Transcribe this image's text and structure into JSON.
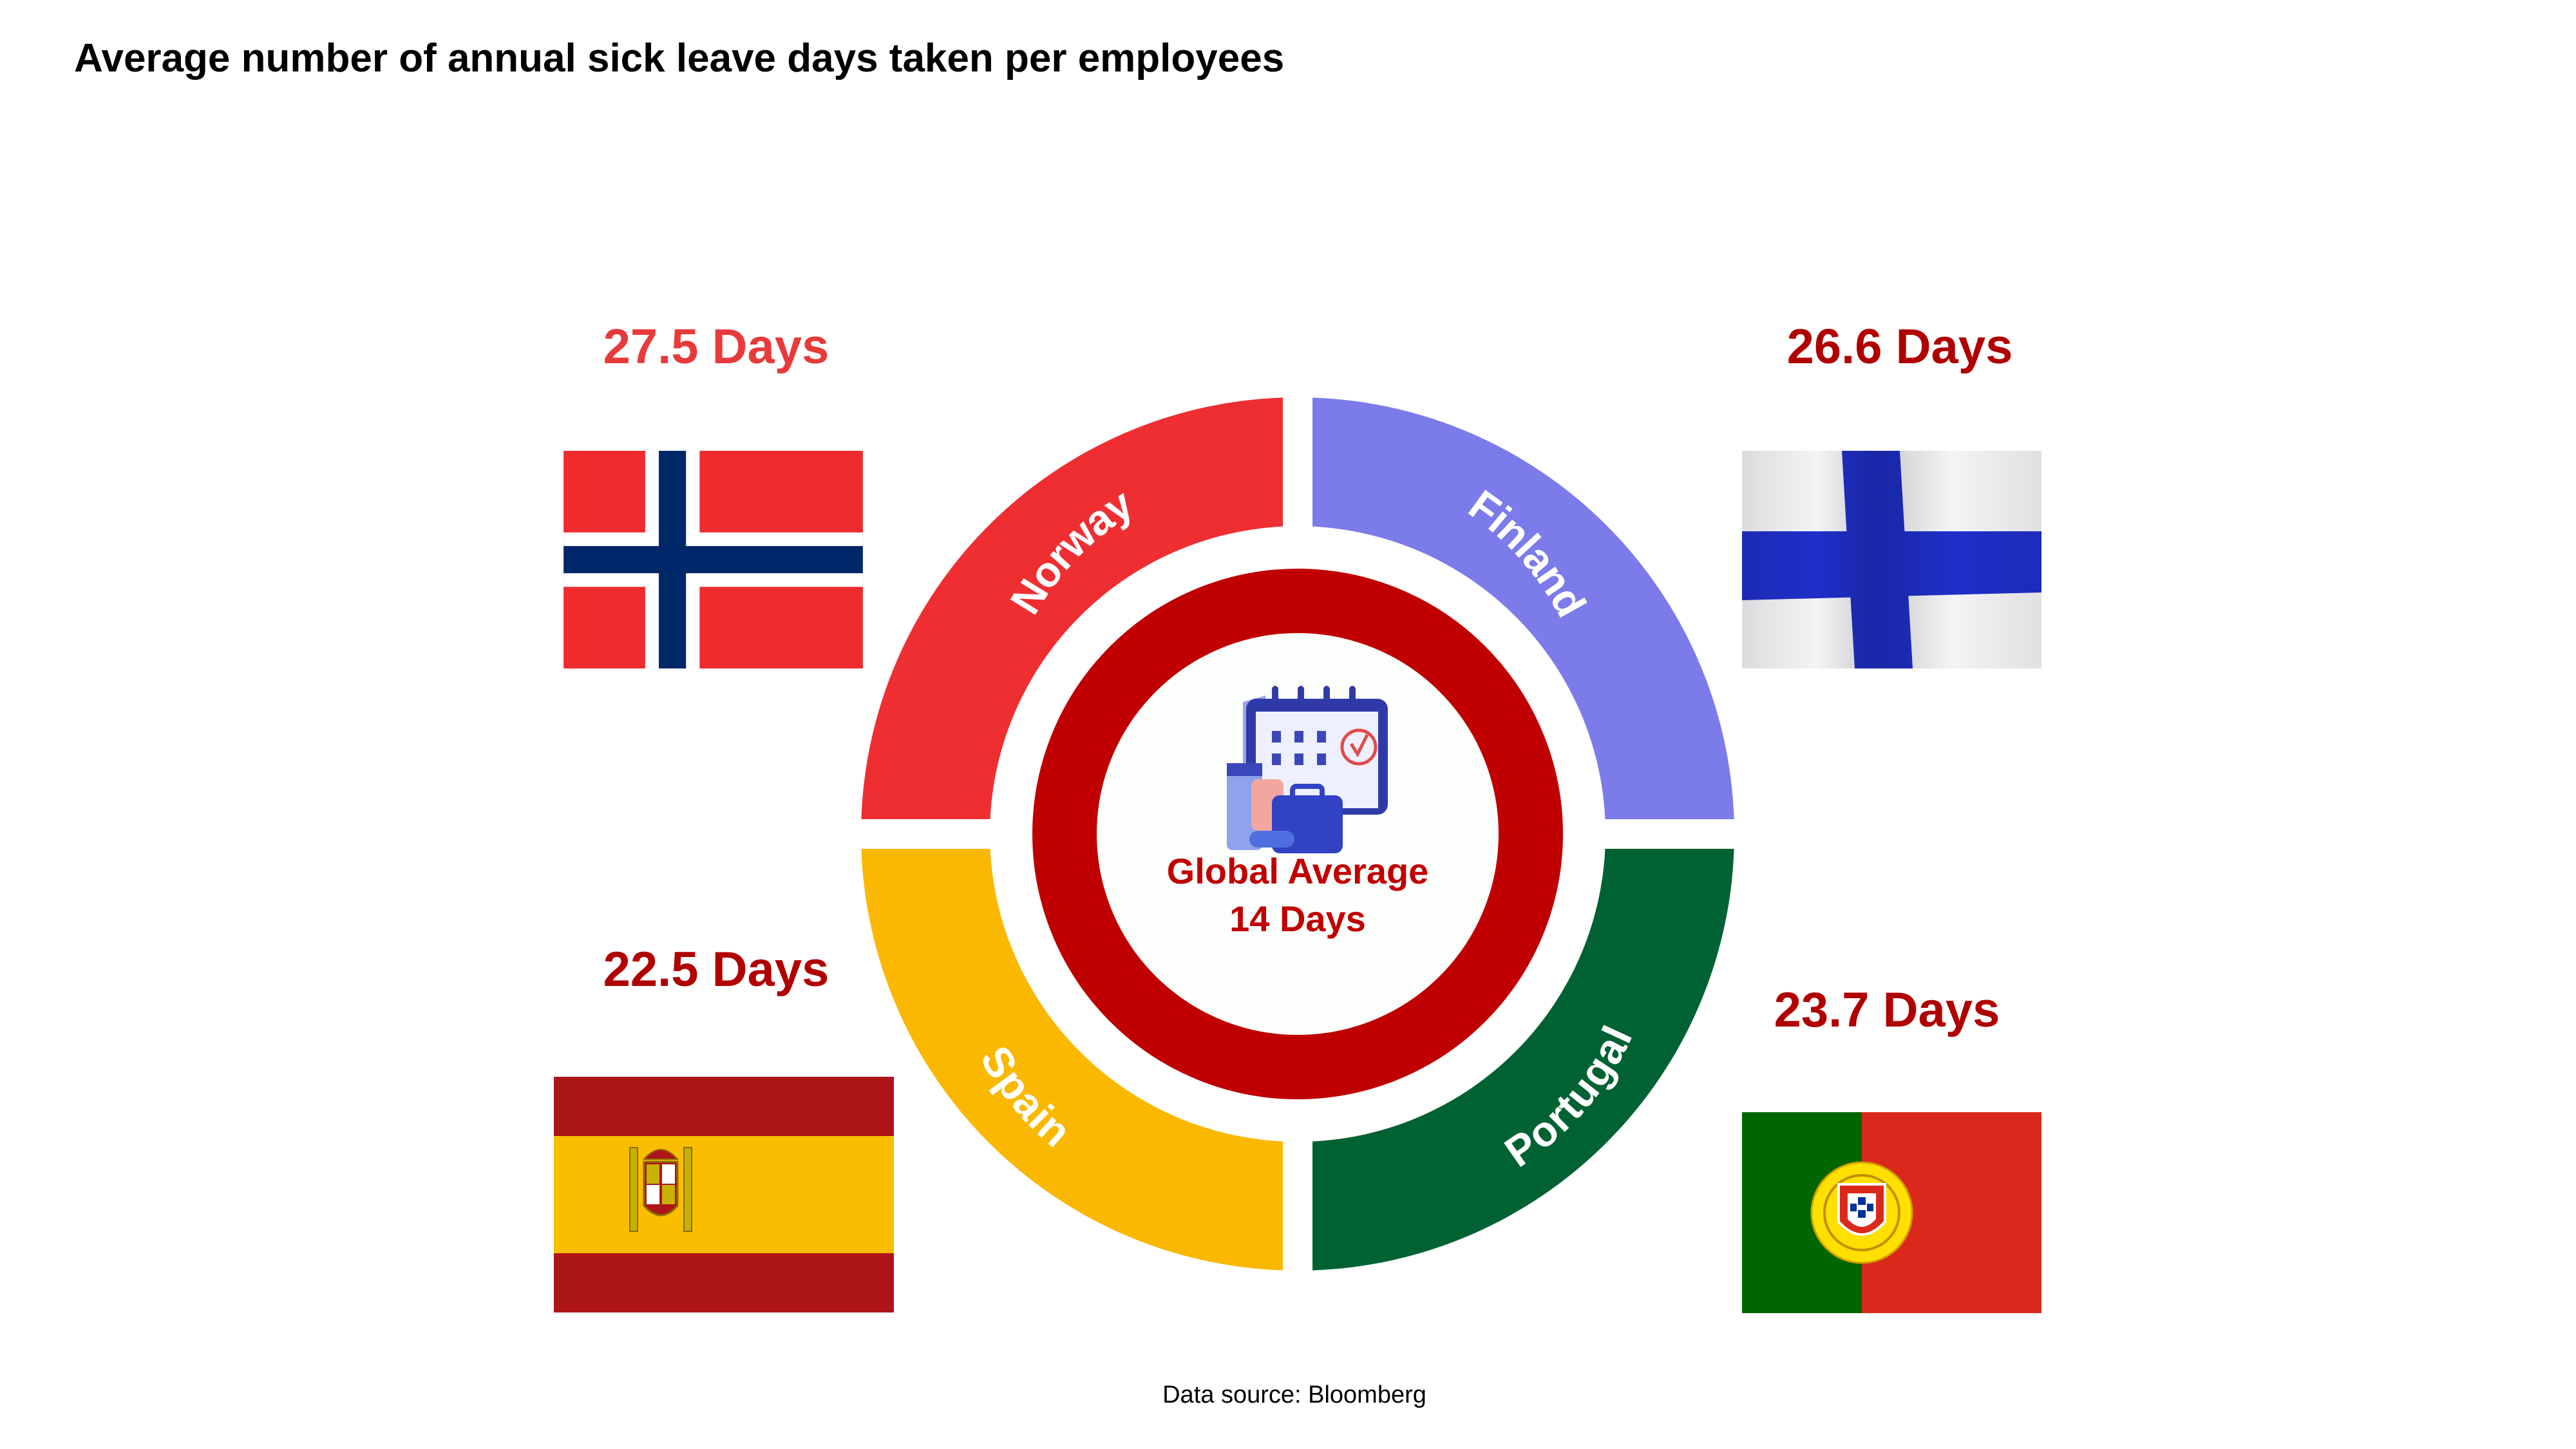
{
  "title": "Average number of annual sick leave days taken per employees",
  "source": "Data source: Bloomberg",
  "center": {
    "line1": "Global Average",
    "line2": "14 Days",
    "icon": "calendar-sick-icon"
  },
  "chart_data": {
    "type": "donut",
    "title": "Average number of annual sick leave days taken per employees",
    "unit": "Days",
    "global_average": 14,
    "categories": [
      "Norway",
      "Finland",
      "Spain",
      "Portugal"
    ],
    "values": [
      27.5,
      26.6,
      22.5,
      23.7
    ],
    "value_labels": [
      "27.5 Days",
      "26.6 Days",
      "22.5 Days",
      "23.7 Days"
    ],
    "colors": {
      "Norway": "#ef2e32",
      "Finland": "#7b7be9",
      "Spain": "#fbb800",
      "Portugal": "#006232",
      "center_ring": "#c00000",
      "value_text_norway": "#e83a3a",
      "value_text": "#b00000"
    }
  }
}
